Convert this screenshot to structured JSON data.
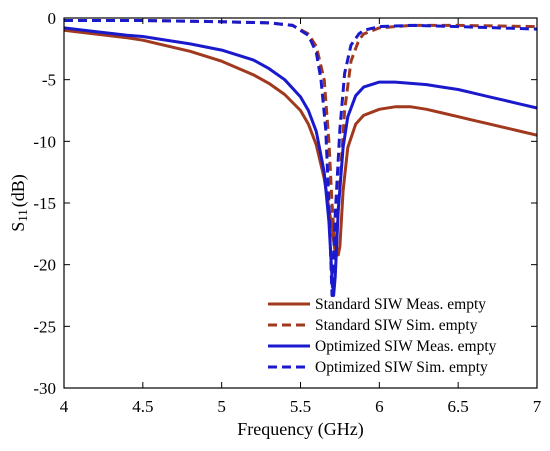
{
  "chart_data": {
    "type": "line",
    "xlabel": "Frequency (GHz)",
    "ylabel_main": "S",
    "ylabel_sub": "11",
    "ylabel_unit": "(dB)",
    "xlim": [
      4,
      7
    ],
    "ylim": [
      -30,
      0
    ],
    "xticks": [
      "4",
      "4.5",
      "5",
      "5.5",
      "6",
      "6.5",
      "7"
    ],
    "yticks": [
      "0",
      "-5",
      "-10",
      "-15",
      "-20",
      "-25",
      "-30"
    ],
    "grid": false,
    "legend_position": "bottom-right",
    "series": [
      {
        "name": "Standard SIW Meas. empty",
        "color": "#a0391e",
        "dash": "solid",
        "x": [
          4.0,
          4.2,
          4.4,
          4.5,
          4.6,
          4.8,
          5.0,
          5.2,
          5.3,
          5.4,
          5.5,
          5.55,
          5.6,
          5.65,
          5.7,
          5.72,
          5.74,
          5.75,
          5.77,
          5.8,
          5.85,
          5.9,
          6.0,
          6.1,
          6.2,
          6.3,
          6.4,
          6.5,
          6.6,
          6.7,
          6.8,
          6.9,
          7.0
        ],
        "y": [
          -1.0,
          -1.3,
          -1.6,
          -1.8,
          -2.1,
          -2.7,
          -3.5,
          -4.6,
          -5.3,
          -6.2,
          -7.5,
          -8.6,
          -10.3,
          -13.0,
          -17.0,
          -19.0,
          -19.2,
          -18.5,
          -14.0,
          -10.5,
          -8.6,
          -7.9,
          -7.4,
          -7.2,
          -7.2,
          -7.4,
          -7.7,
          -8.0,
          -8.3,
          -8.6,
          -8.9,
          -9.2,
          -9.5
        ]
      },
      {
        "name": "Standard SIW Sim. empty",
        "color": "#a0391e",
        "dash": "dashed",
        "x": [
          4.0,
          4.5,
          5.0,
          5.3,
          5.45,
          5.55,
          5.6,
          5.65,
          5.68,
          5.7,
          5.72,
          5.75,
          5.78,
          5.82,
          5.87,
          5.9,
          6.0,
          6.2,
          6.5,
          7.0
        ],
        "y": [
          -0.2,
          -0.2,
          -0.3,
          -0.4,
          -0.6,
          -1.3,
          -2.3,
          -5.0,
          -10.0,
          -15.0,
          -19.0,
          -13.5,
          -7.5,
          -3.5,
          -1.8,
          -1.3,
          -0.8,
          -0.6,
          -0.6,
          -0.7
        ]
      },
      {
        "name": "Optimized SIW Meas. empty",
        "color": "#1a1acc",
        "dash": "solid",
        "x": [
          4.0,
          4.2,
          4.4,
          4.5,
          4.6,
          4.8,
          5.0,
          5.2,
          5.3,
          5.4,
          5.5,
          5.55,
          5.6,
          5.65,
          5.68,
          5.7,
          5.71,
          5.72,
          5.74,
          5.77,
          5.8,
          5.85,
          5.9,
          6.0,
          6.1,
          6.2,
          6.3,
          6.4,
          6.5,
          6.6,
          6.7,
          6.8,
          6.9,
          7.0
        ],
        "y": [
          -0.8,
          -1.1,
          -1.4,
          -1.5,
          -1.7,
          -2.1,
          -2.6,
          -3.4,
          -4.1,
          -5.0,
          -6.4,
          -7.5,
          -9.2,
          -12.5,
          -16.5,
          -21.0,
          -22.5,
          -21.0,
          -15.5,
          -10.5,
          -8.0,
          -6.3,
          -5.6,
          -5.2,
          -5.2,
          -5.3,
          -5.4,
          -5.6,
          -5.8,
          -6.1,
          -6.4,
          -6.7,
          -7.0,
          -7.3
        ]
      },
      {
        "name": "Optimized SIW Sim. empty",
        "color": "#1a1acc",
        "dash": "dashed",
        "x": [
          4.0,
          4.5,
          5.0,
          5.3,
          5.45,
          5.55,
          5.6,
          5.63,
          5.66,
          5.68,
          5.7,
          5.72,
          5.75,
          5.78,
          5.82,
          5.87,
          5.9,
          6.0,
          6.2,
          6.5,
          7.0
        ],
        "y": [
          -0.2,
          -0.2,
          -0.3,
          -0.4,
          -0.6,
          -1.4,
          -2.8,
          -5.0,
          -9.0,
          -15.0,
          -22.5,
          -16.0,
          -9.0,
          -4.5,
          -2.2,
          -1.3,
          -1.0,
          -0.7,
          -0.6,
          -0.7,
          -0.9
        ]
      }
    ]
  }
}
